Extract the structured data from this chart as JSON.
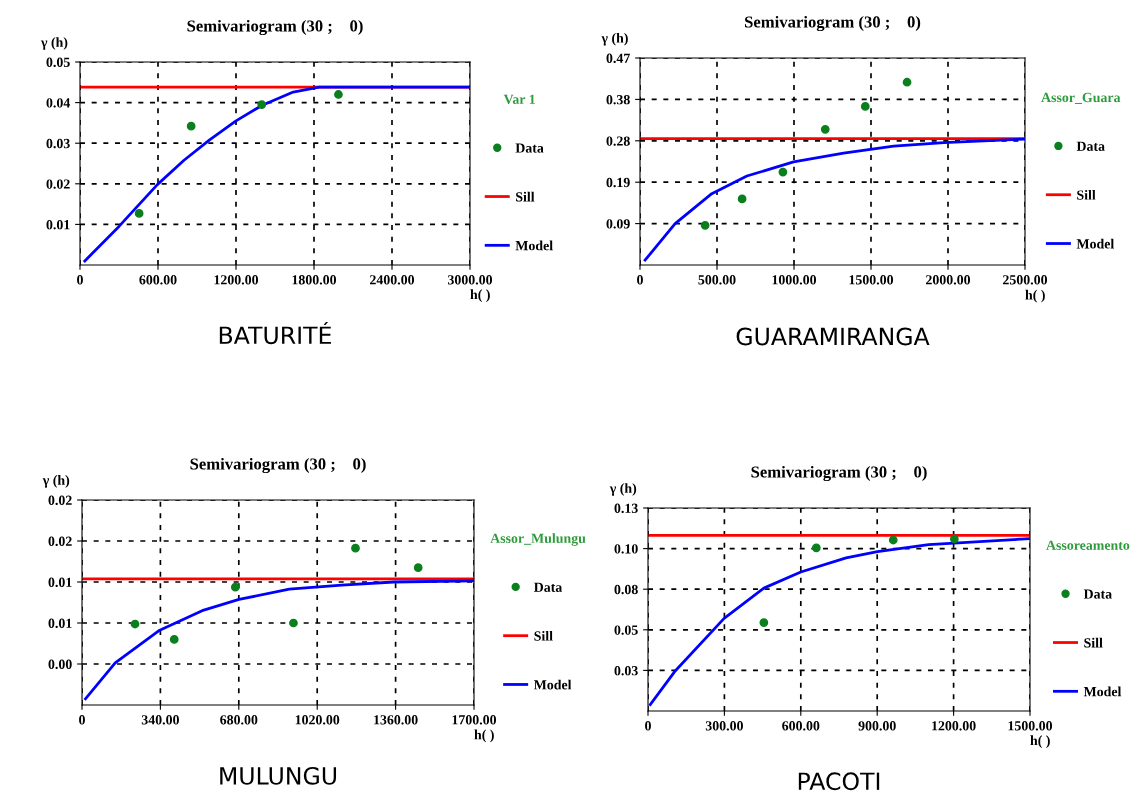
{
  "chart_data": [
    {
      "type": "scatter",
      "title": "Semivariogram (30 ;    0)",
      "xlabel": "h( )",
      "ylabel": "γ (h)",
      "legend_title": "Var 1",
      "annotations": [
        "BATURITÉ"
      ],
      "xlim": [
        0,
        3000
      ],
      "ylim": [
        0,
        0.05
      ],
      "xticks": [
        0,
        {
          "value": 600,
          "label": "600.00"
        },
        {
          "value": 1200,
          "label": "1200.00"
        },
        {
          "value": 1800,
          "label": "1800.00"
        },
        {
          "value": 2400,
          "label": "2400.00"
        },
        {
          "value": 3000,
          "label": "3000.00"
        }
      ],
      "yticks": [
        0.01,
        0.02,
        0.03,
        0.04,
        0.05
      ],
      "grid": true,
      "legend": "right",
      "ref_lines": [
        {
          "axis": "y",
          "value": 0.0438,
          "label": "Sill",
          "color": "#ff0000",
          "line_style": "solid"
        }
      ],
      "series": [
        {
          "name": "Data",
          "color": "#0a7f1e",
          "x": [
            455,
            855,
            1398,
            1988
          ],
          "values": [
            0.0127,
            0.0342,
            0.0395,
            0.042
          ]
        },
        {
          "name": "Model",
          "type": "line",
          "color": "#0000ff",
          "x": [
            37,
            300,
            595,
            800,
            997,
            1200,
            1398,
            1640,
            1840,
            3000
          ],
          "values": [
            0.001,
            0.0095,
            0.0198,
            0.0258,
            0.0308,
            0.0355,
            0.0393,
            0.0426,
            0.0438,
            0.0438
          ]
        }
      ]
    },
    {
      "type": "scatter",
      "title": "Semivariogram (30 ;    0)",
      "xlabel": "h( )",
      "ylabel": "γ (h)",
      "legend_title": "Assor_Guara",
      "annotations": [
        "GUARAMIRANGA"
      ],
      "xlim": [
        0,
        2500
      ],
      "ylim": [
        0,
        0.47
      ],
      "xticks": [
        0,
        {
          "value": 500,
          "label": "500.00"
        },
        {
          "value": 1000,
          "label": "1000.00"
        },
        {
          "value": 1500,
          "label": "1500.00"
        },
        {
          "value": 2000,
          "label": "2000.00"
        },
        {
          "value": 2500,
          "label": "2500.00"
        }
      ],
      "yticks": [
        {
          "value": 0.094,
          "label": "0.09"
        },
        {
          "value": 0.188,
          "label": "0.19"
        },
        {
          "value": 0.282,
          "label": "0.28"
        },
        {
          "value": 0.376,
          "label": "0.38"
        },
        0.47
      ],
      "grid": true,
      "legend": "right",
      "ref_lines": [
        {
          "axis": "y",
          "value": 0.287,
          "label": "Sill",
          "color": "#ff0000",
          "line_style": "solid"
        }
      ],
      "series": [
        {
          "name": "Data",
          "color": "#0a7f1e",
          "x": [
            423,
            663,
            928,
            1203,
            1463,
            1734
          ],
          "values": [
            0.09,
            0.15,
            0.211,
            0.308,
            0.36,
            0.415
          ]
        },
        {
          "name": "Model",
          "type": "line",
          "color": "#0000ff",
          "x": [
            33,
            228,
            466,
            694,
            997,
            1322,
            1647,
            1973,
            2500
          ],
          "values": [
            0.011,
            0.094,
            0.162,
            0.202,
            0.234,
            0.254,
            0.27,
            0.278,
            0.286
          ]
        }
      ]
    },
    {
      "type": "scatter",
      "title": "Semivariogram (30 ;    0)",
      "xlabel": "h( )",
      "ylabel": "γ (h)",
      "legend_title": "Assor_Mulungu",
      "annotations": [
        "MULUNGU"
      ],
      "xlim": [
        0,
        1700
      ],
      "ylim": [
        0,
        0.02
      ],
      "xticks": [
        0,
        {
          "value": 340,
          "label": "340.00"
        },
        {
          "value": 680,
          "label": "680.00"
        },
        {
          "value": 1020,
          "label": "1020.00"
        },
        {
          "value": 1360,
          "label": "1360.00"
        },
        {
          "value": 1700,
          "label": "1700.00"
        }
      ],
      "yticks": [
        {
          "value": 0.004,
          "label": "0.00"
        },
        {
          "value": 0.008,
          "label": "0.01"
        },
        {
          "value": 0.012,
          "label": "0.01"
        },
        {
          "value": 0.016,
          "label": "0.02"
        },
        0.02
      ],
      "grid": true,
      "legend": "right",
      "ref_lines": [
        {
          "axis": "y",
          "value": 0.0123,
          "label": "Sill",
          "color": "#ff0000",
          "line_style": "solid"
        }
      ],
      "series": [
        {
          "name": "Data",
          "color": "#0a7f1e",
          "x": [
            230,
            400,
            665,
            917,
            1186,
            1458
          ],
          "values": [
            0.0079,
            0.0064,
            0.0115,
            0.008,
            0.0153,
            0.0134
          ]
        },
        {
          "name": "Model",
          "type": "line",
          "color": "#0000ff",
          "x": [
            15,
            144,
            337,
            521,
            681,
            899,
            1126,
            1352,
            1700
          ],
          "values": [
            0.0006,
            0.0041,
            0.0073,
            0.0092,
            0.0103,
            0.0113,
            0.0117,
            0.012,
            0.0121
          ]
        }
      ]
    },
    {
      "type": "scatter",
      "title": "Semivariogram (30 ;    0)",
      "xlabel": "h( )",
      "ylabel": "γ (h)",
      "legend_title": "Assoreamento",
      "annotations": [
        "PACOTI"
      ],
      "xlim": [
        0,
        1500
      ],
      "ylim": [
        0,
        0.13
      ],
      "xticks": [
        0,
        {
          "value": 300,
          "label": "300.00"
        },
        {
          "value": 600,
          "label": "600.00"
        },
        {
          "value": 900,
          "label": "900.00"
        },
        {
          "value": 1200,
          "label": "1200.00"
        },
        {
          "value": 1500,
          "label": "1500.00"
        }
      ],
      "yticks": [
        {
          "value": 0.026,
          "label": "0.03"
        },
        {
          "value": 0.052,
          "label": "0.05"
        },
        {
          "value": 0.078,
          "label": "0.08"
        },
        {
          "value": 0.104,
          "label": "0.10"
        },
        0.13
      ],
      "grid": true,
      "legend": "right",
      "ref_lines": [
        {
          "axis": "y",
          "value": 0.1125,
          "label": "Sill",
          "color": "#ff0000",
          "line_style": "solid"
        }
      ],
      "series": [
        {
          "name": "Data",
          "color": "#0a7f1e",
          "x": [
            455,
            661,
            963,
            1203
          ],
          "values": [
            0.0566,
            0.1045,
            0.1095,
            0.1102
          ]
        },
        {
          "name": "Model",
          "type": "line",
          "color": "#0000ff",
          "x": [
            9,
            104,
            299,
            455,
            600,
            778,
            901,
            1102,
            1500
          ],
          "values": [
            0.0041,
            0.0251,
            0.0593,
            0.0787,
            0.089,
            0.0981,
            0.102,
            0.1065,
            0.1104
          ]
        }
      ]
    }
  ]
}
